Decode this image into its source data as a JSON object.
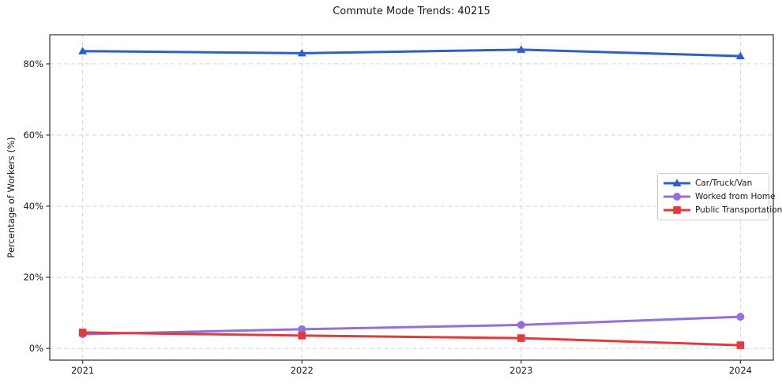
{
  "chart_data": {
    "type": "line",
    "title": "Commute Mode Trends: 40215",
    "xlabel": "",
    "ylabel": "Percentage of Workers (%)",
    "x": [
      2021,
      2022,
      2023,
      2024
    ],
    "x_tick_labels": [
      "2021",
      "2022",
      "2023",
      "2024"
    ],
    "series": [
      {
        "name": "Car/Truck/Van",
        "color": "#2d5fc7",
        "marker": "triangle",
        "values": [
          83.6,
          83.0,
          84.0,
          82.2
        ]
      },
      {
        "name": "Worked from Home",
        "color": "#9370db",
        "marker": "circle",
        "values": [
          4.0,
          5.4,
          6.6,
          8.9
        ]
      },
      {
        "name": "Public Transportation",
        "color": "#e23b3d",
        "marker": "square",
        "values": [
          4.5,
          3.6,
          2.9,
          0.9
        ]
      }
    ],
    "yticks": [
      {
        "value": 0,
        "label": "0%"
      },
      {
        "value": 20,
        "label": "20%"
      },
      {
        "value": 40,
        "label": "40%"
      },
      {
        "value": 60,
        "label": "60%"
      },
      {
        "value": 80,
        "label": "80%"
      }
    ],
    "xlim": [
      2020.85,
      2024.15
    ],
    "ylim": [
      -3.3,
      88.2
    ],
    "grid": true,
    "grid_style": "dashed",
    "legend_position": "center right"
  },
  "style_colors": {
    "grid": "#d4d4d4",
    "spine": "#333333",
    "tick_text": "#1a1a1a",
    "background": "#ffffff"
  }
}
